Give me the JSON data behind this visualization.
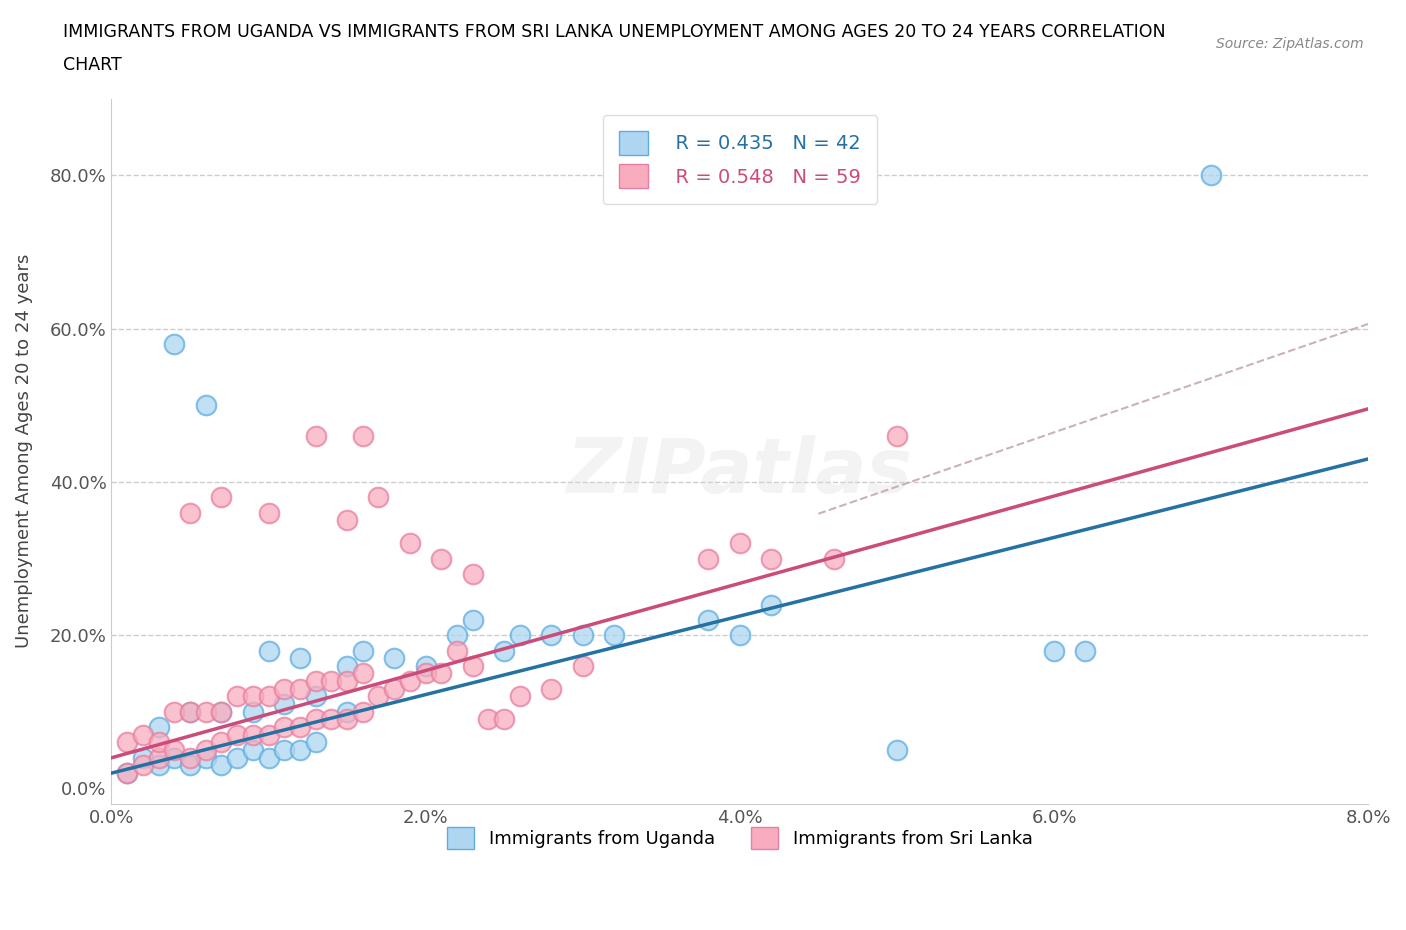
{
  "title_line1": "IMMIGRANTS FROM UGANDA VS IMMIGRANTS FROM SRI LANKA UNEMPLOYMENT AMONG AGES 20 TO 24 YEARS CORRELATION",
  "title_line2": "CHART",
  "source_text": "Source: ZipAtlas.com",
  "ylabel": "Unemployment Among Ages 20 to 24 years",
  "xlim": [
    0.0,
    0.08
  ],
  "ylim": [
    -0.02,
    0.9
  ],
  "xticks": [
    0.0,
    0.02,
    0.04,
    0.06,
    0.08
  ],
  "xtick_labels": [
    "0.0%",
    "2.0%",
    "4.0%",
    "6.0%",
    "8.0%"
  ],
  "yticks": [
    0.0,
    0.2,
    0.4,
    0.6,
    0.8
  ],
  "ytick_labels": [
    "0.0%",
    "20.0%",
    "40.0%",
    "60.0%",
    "80.0%"
  ],
  "uganda_fill": "#AED6F1",
  "uganda_edge": "#5DADE2",
  "srilanka_fill": "#F9ACBE",
  "srilanka_edge": "#E87FA0",
  "uganda_line_color": "#2471A3",
  "srilanka_line_color": "#CB4C7A",
  "dashed_line_color": "#C0A0A0",
  "R_uganda": 0.435,
  "N_uganda": 42,
  "R_srilanka": 0.548,
  "N_srilanka": 59,
  "watermark": "ZIPatlas",
  "legend_label_uganda": "Immigrants from Uganda",
  "legend_label_srilanka": "Immigrants from Sri Lanka",
  "uganda_x": [
    0.001,
    0.002,
    0.003,
    0.004,
    0.005,
    0.006,
    0.007,
    0.008,
    0.009,
    0.01,
    0.011,
    0.012,
    0.013,
    0.003,
    0.005,
    0.007,
    0.009,
    0.011,
    0.013,
    0.015,
    0.01,
    0.012,
    0.015,
    0.016,
    0.018,
    0.02,
    0.022,
    0.023,
    0.025,
    0.026,
    0.028,
    0.03,
    0.032,
    0.038,
    0.04,
    0.042,
    0.05,
    0.06,
    0.062,
    0.07,
    0.004,
    0.006
  ],
  "uganda_y": [
    0.02,
    0.04,
    0.03,
    0.04,
    0.03,
    0.04,
    0.03,
    0.04,
    0.05,
    0.04,
    0.05,
    0.05,
    0.06,
    0.08,
    0.1,
    0.1,
    0.1,
    0.11,
    0.12,
    0.1,
    0.18,
    0.17,
    0.16,
    0.18,
    0.17,
    0.16,
    0.2,
    0.22,
    0.18,
    0.2,
    0.2,
    0.2,
    0.2,
    0.22,
    0.2,
    0.24,
    0.05,
    0.18,
    0.18,
    0.8,
    0.58,
    0.5
  ],
  "srilanka_x": [
    0.001,
    0.001,
    0.002,
    0.002,
    0.003,
    0.003,
    0.004,
    0.004,
    0.005,
    0.005,
    0.006,
    0.006,
    0.007,
    0.007,
    0.008,
    0.008,
    0.009,
    0.009,
    0.01,
    0.01,
    0.011,
    0.011,
    0.012,
    0.012,
    0.013,
    0.013,
    0.014,
    0.014,
    0.015,
    0.015,
    0.016,
    0.016,
    0.017,
    0.018,
    0.019,
    0.02,
    0.021,
    0.022,
    0.023,
    0.024,
    0.025,
    0.026,
    0.028,
    0.03,
    0.015,
    0.017,
    0.019,
    0.021,
    0.023,
    0.038,
    0.04,
    0.042,
    0.046,
    0.05,
    0.005,
    0.007,
    0.01,
    0.013,
    0.016
  ],
  "srilanka_y": [
    0.02,
    0.06,
    0.03,
    0.07,
    0.04,
    0.06,
    0.05,
    0.1,
    0.04,
    0.1,
    0.05,
    0.1,
    0.06,
    0.1,
    0.07,
    0.12,
    0.07,
    0.12,
    0.07,
    0.12,
    0.08,
    0.13,
    0.08,
    0.13,
    0.09,
    0.14,
    0.09,
    0.14,
    0.09,
    0.14,
    0.1,
    0.15,
    0.12,
    0.13,
    0.14,
    0.15,
    0.15,
    0.18,
    0.16,
    0.09,
    0.09,
    0.12,
    0.13,
    0.16,
    0.35,
    0.38,
    0.32,
    0.3,
    0.28,
    0.3,
    0.32,
    0.3,
    0.3,
    0.46,
    0.36,
    0.38,
    0.36,
    0.46,
    0.46
  ]
}
